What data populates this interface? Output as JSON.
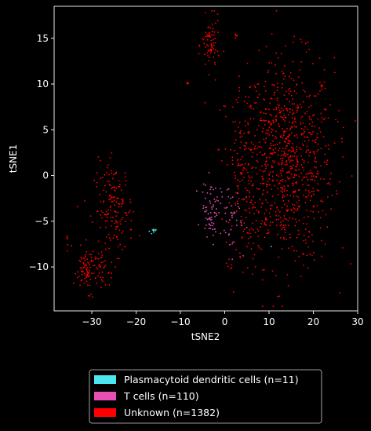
{
  "chart_data": {
    "type": "scatter",
    "xlabel": "tSNE2",
    "ylabel": "tSNE1",
    "xlim": [
      -38.5,
      30
    ],
    "ylim": [
      -14.8,
      18.5
    ],
    "xticks": [
      -30,
      -20,
      -10,
      0,
      10,
      20,
      30
    ],
    "yticks": [
      -10,
      -5,
      0,
      5,
      10,
      15
    ],
    "grid": false,
    "legend_position": "bottom-center",
    "background": "#000000",
    "series": [
      {
        "name": "Plasmacytoid dendritic cells (n=11)",
        "color": "#4de6f0",
        "count": 11,
        "clusters": [
          {
            "cx": -16.2,
            "cy": -6.1,
            "sx": 0.35,
            "sy": 0.15,
            "n": 10
          },
          {
            "cx": 10.5,
            "cy": -7.6,
            "sx": 0.1,
            "sy": 0.1,
            "n": 1
          }
        ]
      },
      {
        "name": "T cells (n=110)",
        "color": "#e64fb4",
        "count": 110,
        "clusters": [
          {
            "cx": -3.0,
            "cy": -3.6,
            "sx": 1.1,
            "sy": 1.5,
            "n": 70
          },
          {
            "cx": 1.5,
            "cy": -4.5,
            "sx": 1.6,
            "sy": 2.0,
            "n": 40
          }
        ]
      },
      {
        "name": "Unknown (n=1382)",
        "color": "#ff0000",
        "count": 1382,
        "clusters": [
          {
            "cx": 14.0,
            "cy": 1.5,
            "sx": 5.3,
            "sy": 5.6,
            "n": 860
          },
          {
            "cx": 5.0,
            "cy": 1.0,
            "sx": 2.5,
            "sy": 4.5,
            "n": 120
          },
          {
            "cx": -25.0,
            "cy": -3.8,
            "sx": 2.2,
            "sy": 2.6,
            "n": 170
          },
          {
            "cx": -30.5,
            "cy": -10.3,
            "sx": 1.8,
            "sy": 1.2,
            "n": 110
          },
          {
            "cx": -3.2,
            "cy": 14.2,
            "sx": 1.0,
            "sy": 1.5,
            "n": 75
          },
          {
            "cx": 2.5,
            "cy": 15.2,
            "sx": 0.25,
            "sy": 0.2,
            "n": 6
          },
          {
            "cx": -8.3,
            "cy": 10.1,
            "sx": 0.15,
            "sy": 0.15,
            "n": 5
          },
          {
            "cx": -35.5,
            "cy": -7.5,
            "sx": 0.4,
            "sy": 0.8,
            "n": 6
          },
          {
            "cx": 1.5,
            "cy": -9.5,
            "sx": 0.5,
            "sy": 0.5,
            "n": 6
          },
          {
            "cx": 4.0,
            "cy": -5.0,
            "sx": 1.5,
            "sy": 2.5,
            "n": 24
          }
        ]
      }
    ]
  }
}
